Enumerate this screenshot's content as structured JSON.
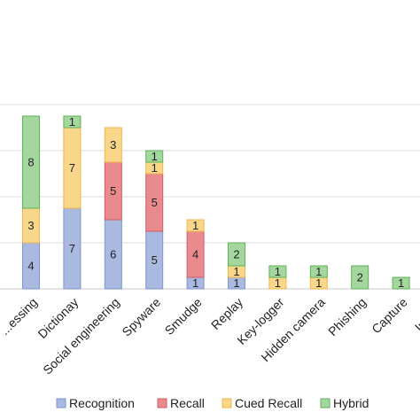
{
  "chart_data": {
    "type": "bar",
    "stacked": true,
    "title": "",
    "xlabel": "",
    "ylabel": "",
    "ylim": [
      0,
      16
    ],
    "grid": true,
    "legend_position": "bottom",
    "categories": [
      "...essing",
      "Dictionay",
      "Social engineering",
      "Spyware",
      "Smudge",
      "Replay",
      "Key-logger",
      "Hidden camera",
      "Phishing",
      "Capture",
      "Inters..."
    ],
    "series": [
      {
        "name": "Recognition",
        "color": "#a9b9e0",
        "border": "#7e96cf",
        "values": [
          4,
          7,
          6,
          5,
          1,
          1,
          0,
          0,
          0,
          0,
          0
        ]
      },
      {
        "name": "Recall",
        "color": "#e88a8e",
        "border": "#d25c63",
        "values": [
          0,
          0,
          5,
          5,
          4,
          0,
          0,
          0,
          0,
          0,
          0
        ]
      },
      {
        "name": "Cued Recall",
        "color": "#f9d78a",
        "border": "#f0b64e",
        "values": [
          3,
          7,
          3,
          1,
          1,
          1,
          1,
          1,
          0,
          0,
          0
        ]
      },
      {
        "name": "Hybrid",
        "color": "#a3d79e",
        "border": "#5fb25a",
        "values": [
          8,
          1,
          0,
          1,
          0,
          2,
          1,
          1,
          2,
          1,
          0
        ]
      }
    ]
  }
}
